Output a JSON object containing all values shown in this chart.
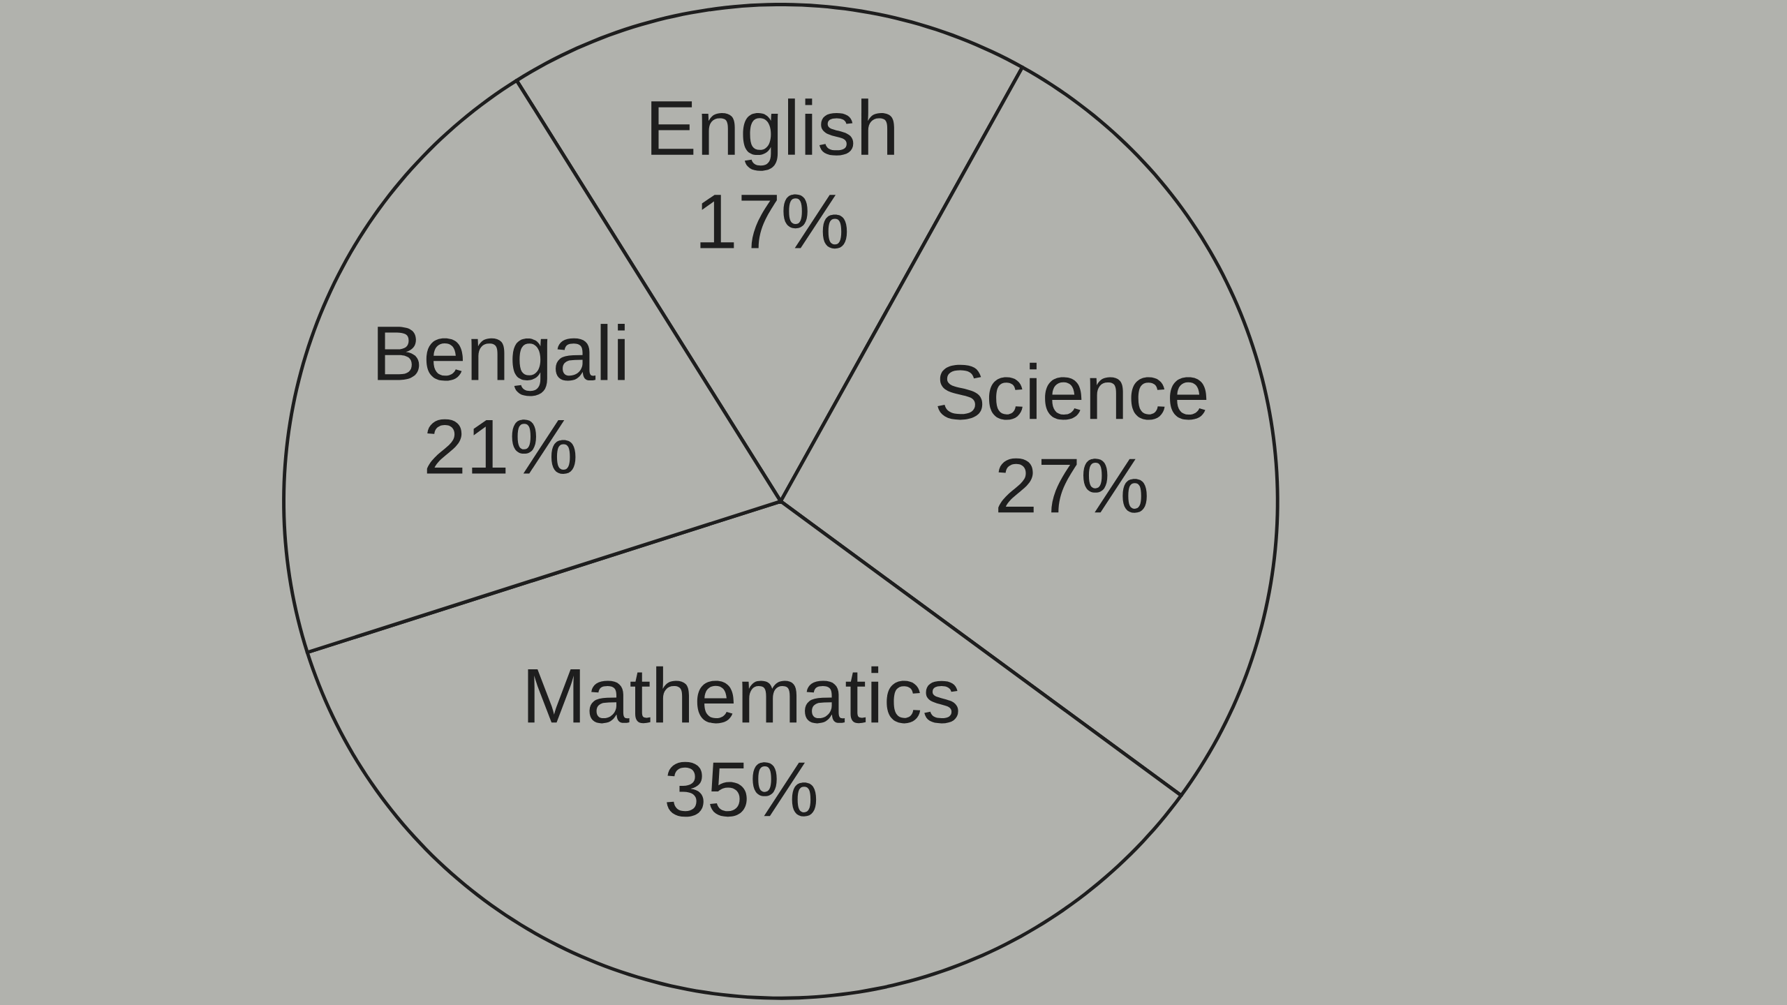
{
  "chart_data": {
    "type": "pie",
    "categories": [
      "English",
      "Science",
      "Mathematics",
      "Bengali"
    ],
    "values": [
      17,
      27,
      35,
      21
    ],
    "value_labels": [
      "17%",
      "27%",
      "35%",
      "21%"
    ],
    "colors": [
      "#b1b2ad",
      "#b1b2ad",
      "#b1b2ad",
      "#b1b2ad"
    ]
  }
}
